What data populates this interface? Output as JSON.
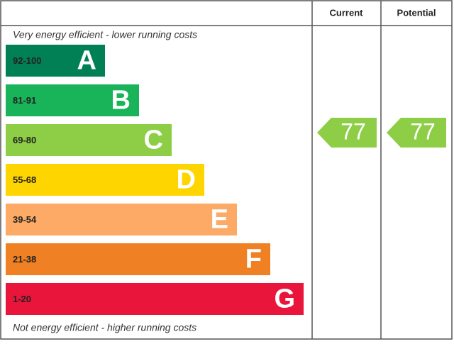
{
  "header": {
    "current": "Current",
    "potential": "Potential"
  },
  "top_note": "Very energy efficient - lower running costs",
  "bottom_note": "Not energy efficient - higher running costs",
  "bands": [
    {
      "range": "92-100",
      "letter": "A",
      "color": "#008054"
    },
    {
      "range": "81-91",
      "letter": "B",
      "color": "#19b459"
    },
    {
      "range": "69-80",
      "letter": "C",
      "color": "#8dce46"
    },
    {
      "range": "55-68",
      "letter": "D",
      "color": "#ffd500"
    },
    {
      "range": "39-54",
      "letter": "E",
      "color": "#fcaa65"
    },
    {
      "range": "21-38",
      "letter": "F",
      "color": "#ef8023"
    },
    {
      "range": "1-20",
      "letter": "G",
      "color": "#e9153b"
    }
  ],
  "current": {
    "value": 77
  },
  "potential": {
    "value": 77
  }
}
